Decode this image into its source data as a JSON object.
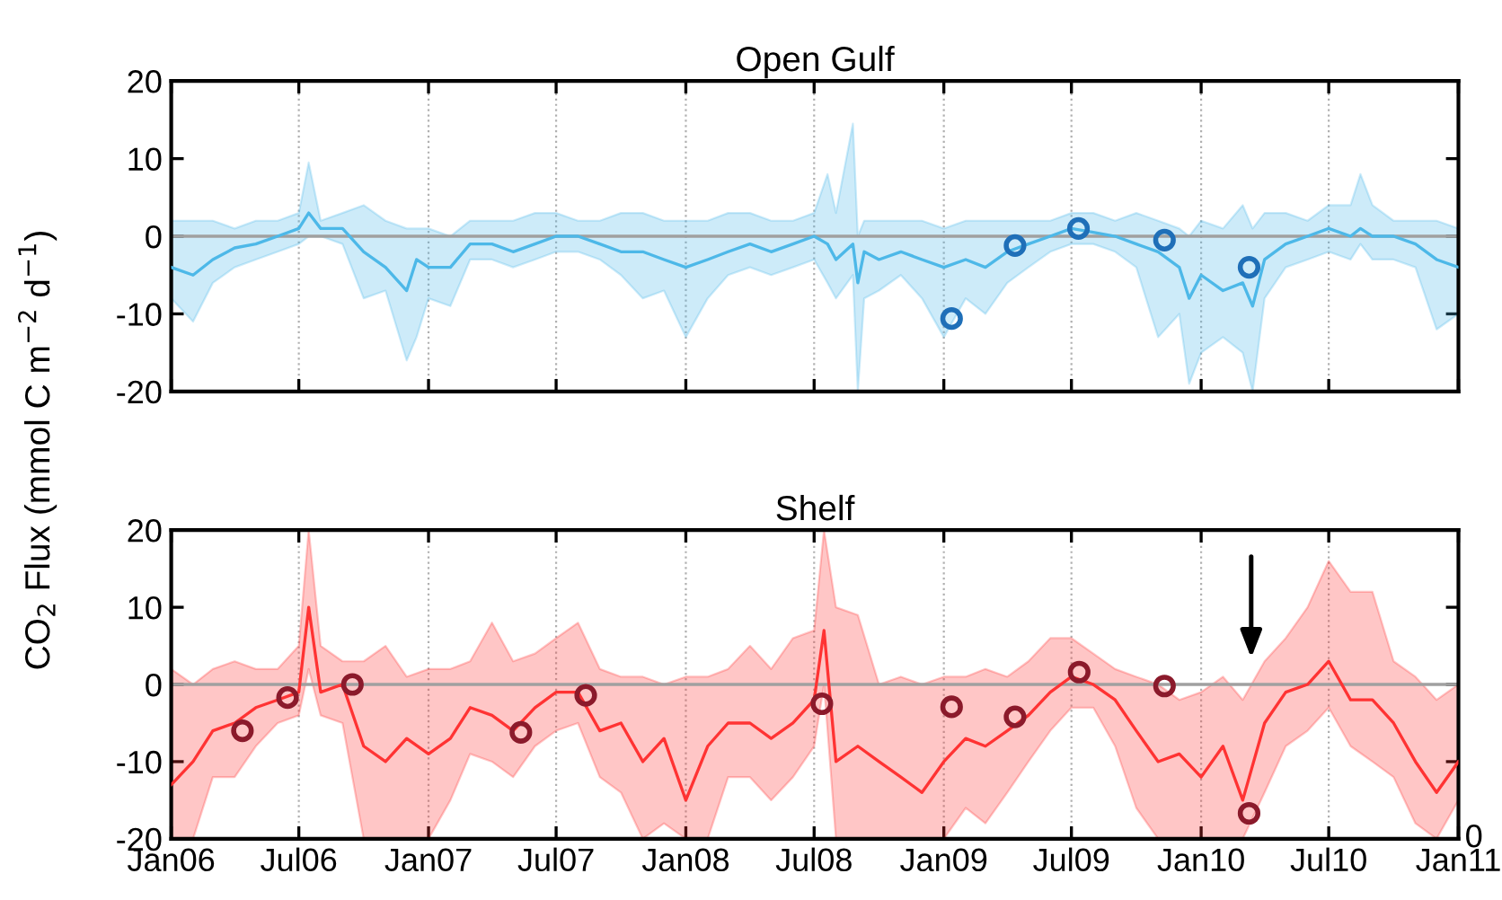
{
  "chart_data": [
    {
      "type": "line",
      "title": "Open Gulf",
      "ylabel": "CO$_{2}$ Flux (mmol C m$^{−2}$ d$^{−1}$)",
      "xlim": [
        "2006-01-01",
        "2011-01-01"
      ],
      "ylim": [
        -20,
        20
      ],
      "yticks": [
        -20,
        -10,
        0,
        10,
        20
      ],
      "xticks": [
        {
          "value": "2006-01-01",
          "label": null
        },
        {
          "value": "2006-07-01",
          "label": null
        },
        {
          "value": "2007-01-01",
          "label": null
        },
        {
          "value": "2007-07-01",
          "label": null
        },
        {
          "value": "2008-01-01",
          "label": null
        },
        {
          "value": "2008-07-01",
          "label": null
        },
        {
          "value": "2009-01-01",
          "label": null
        },
        {
          "value": "2009-07-01",
          "label": null
        },
        {
          "value": "2010-01-01",
          "label": null
        },
        {
          "value": "2010-07-01",
          "label": null
        },
        {
          "value": "2011-01-01",
          "label": null
        }
      ],
      "tick_labels": "y",
      "grid": "x",
      "legend": false,
      "ref_lines": [
        {
          "axis": "y",
          "value": 0,
          "color": "#a0a0a0",
          "line_style": "solid"
        }
      ],
      "series": [
        {
          "color": "#4db8e8",
          "x": [
            "2006-01-01",
            "2006-02-01",
            "2006-03-01",
            "2006-04-01",
            "2006-05-01",
            "2006-06-01",
            "2006-07-01",
            "2006-07-15",
            "2006-08-01",
            "2006-09-01",
            "2006-10-01",
            "2006-11-01",
            "2006-12-01",
            "2006-12-15",
            "2007-01-01",
            "2007-02-01",
            "2007-03-01",
            "2007-04-01",
            "2007-05-01",
            "2007-06-01",
            "2007-07-01",
            "2007-08-01",
            "2007-09-01",
            "2007-10-01",
            "2007-11-01",
            "2007-12-01",
            "2008-01-01",
            "2008-02-01",
            "2008-03-01",
            "2008-04-01",
            "2008-05-01",
            "2008-06-01",
            "2008-07-01",
            "2008-07-20",
            "2008-08-01",
            "2008-08-25",
            "2008-09-01",
            "2008-09-10",
            "2008-10-01",
            "2008-11-01",
            "2008-12-01",
            "2009-01-01",
            "2009-02-01",
            "2009-03-01",
            "2009-04-01",
            "2009-05-01",
            "2009-06-01",
            "2009-07-01",
            "2009-08-01",
            "2009-09-01",
            "2009-10-01",
            "2009-11-01",
            "2009-12-01",
            "2009-12-15",
            "2010-01-01",
            "2010-02-01",
            "2010-03-01",
            "2010-03-15",
            "2010-04-01",
            "2010-05-01",
            "2010-06-01",
            "2010-07-01",
            "2010-08-01",
            "2010-08-15",
            "2010-09-01",
            "2010-10-01",
            "2010-11-01",
            "2010-12-01",
            "2011-01-01"
          ],
          "values": [
            -4,
            -5,
            -3,
            -1.5,
            -1,
            0,
            1,
            3,
            1,
            1,
            -2,
            -4,
            -7,
            -3,
            -4,
            -4,
            -1,
            -1,
            -2,
            -1,
            0,
            0,
            -1,
            -2,
            -2,
            -3,
            -4,
            -3,
            -2,
            -1,
            -2,
            -1,
            0,
            -1,
            -3,
            -1,
            -6,
            -2,
            -3,
            -2,
            -3,
            -4,
            -3,
            -4,
            -2,
            -1,
            0,
            1,
            0.5,
            0,
            -1,
            -2,
            -4,
            -8,
            -5,
            -7,
            -6,
            -9,
            -3,
            -1,
            0,
            1,
            0,
            1,
            0,
            0,
            -1,
            -3,
            -4
          ],
          "upper": [
            2,
            2,
            2,
            1,
            2,
            2,
            3,
            9.5,
            2,
            3,
            4,
            2,
            1,
            1,
            1,
            0,
            2,
            2,
            2,
            3,
            3,
            2,
            2,
            3,
            3,
            2,
            2,
            2,
            3,
            3,
            2,
            2,
            3,
            8,
            3,
            14.5,
            0,
            2,
            2,
            2,
            2,
            1,
            2,
            2,
            2,
            2,
            2,
            3,
            3,
            2,
            3,
            2,
            1,
            0,
            2,
            1,
            4,
            1,
            3,
            3,
            2,
            4,
            4,
            8,
            4,
            2,
            2,
            2,
            1
          ],
          "lower": [
            -8,
            -11,
            -6,
            -4,
            -3,
            -2,
            -1,
            0,
            0,
            -1,
            -8,
            -7,
            -16,
            -13,
            -8,
            -9,
            -3,
            -3,
            -4,
            -3,
            -2,
            -2,
            -3,
            -5,
            -8,
            -7,
            -13,
            -8,
            -5,
            -4,
            -5,
            -4,
            -3,
            -6,
            -8,
            -5,
            -20,
            -8,
            -7,
            -5,
            -8,
            -13,
            -8,
            -10,
            -6,
            -4,
            -2,
            -1,
            -1,
            -2,
            -4,
            -13,
            -10,
            -19,
            -15,
            -13,
            -15,
            -20,
            -8,
            -4,
            -3,
            -2,
            -3,
            -1,
            -3,
            -3,
            -4,
            -12,
            -10
          ]
        },
        {
          "type": "scatter",
          "color": "#1f6fb8",
          "marker": "circle",
          "x": [
            "2009-01-12",
            "2009-04-12",
            "2009-07-11",
            "2009-11-10",
            "2010-03-10"
          ],
          "values": [
            -10.6,
            -1.2,
            1.0,
            -0.5,
            -4
          ]
        }
      ]
    },
    {
      "type": "line",
      "title": "Shelf",
      "xlim": [
        "2006-01-01",
        "2011-01-01"
      ],
      "ylim": [
        -20,
        20
      ],
      "yticks": [
        {
          "value": -20,
          "label": "-20"
        },
        -10,
        0,
        10,
        20
      ],
      "xticks": [
        {
          "value": "2006-01-01",
          "label": "Jan06"
        },
        {
          "value": "2006-07-01",
          "label": "Jul06"
        },
        {
          "value": "2007-01-01",
          "label": "Jan07"
        },
        {
          "value": "2007-07-01",
          "label": "Jul07"
        },
        {
          "value": "2008-01-01",
          "label": "Jan08"
        },
        {
          "value": "2008-07-01",
          "label": "Jul08"
        },
        {
          "value": "2009-01-01",
          "label": "Jan09"
        },
        {
          "value": "2009-07-01",
          "label": "Jul09"
        },
        {
          "value": "2010-01-01",
          "label": "Jan10"
        },
        {
          "value": "2010-07-01",
          "label": "Jul10"
        },
        {
          "value": "2011-01-01",
          "label": "Jan11"
        }
      ],
      "grid": "x",
      "legend": false,
      "ref_lines": [
        {
          "axis": "y",
          "value": 0,
          "color": "#a0a0a0",
          "line_style": "solid"
        }
      ],
      "annotations": [
        "0"
      ],
      "series": [
        {
          "color": "#ff3333",
          "x": [
            "2006-01-01",
            "2006-02-01",
            "2006-03-01",
            "2006-04-01",
            "2006-05-01",
            "2006-06-01",
            "2006-07-01",
            "2006-07-15",
            "2006-08-01",
            "2006-09-01",
            "2006-10-01",
            "2006-11-01",
            "2006-12-01",
            "2007-01-01",
            "2007-02-01",
            "2007-03-01",
            "2007-04-01",
            "2007-05-01",
            "2007-06-01",
            "2007-07-01",
            "2007-08-01",
            "2007-09-01",
            "2007-10-01",
            "2007-11-01",
            "2007-12-01",
            "2008-01-01",
            "2008-02-01",
            "2008-03-01",
            "2008-04-01",
            "2008-05-01",
            "2008-06-01",
            "2008-07-01",
            "2008-07-15",
            "2008-08-01",
            "2008-09-01",
            "2008-10-01",
            "2008-11-01",
            "2008-12-01",
            "2009-01-01",
            "2009-02-01",
            "2009-03-01",
            "2009-04-01",
            "2009-05-01",
            "2009-06-01",
            "2009-07-01",
            "2009-08-01",
            "2009-09-01",
            "2009-10-01",
            "2009-11-01",
            "2009-12-01",
            "2010-01-01",
            "2010-02-01",
            "2010-03-01",
            "2010-04-01",
            "2010-05-01",
            "2010-06-01",
            "2010-07-01",
            "2010-08-01",
            "2010-09-01",
            "2010-10-01",
            "2010-11-01",
            "2010-12-01",
            "2011-01-01"
          ],
          "values": [
            -13,
            -10,
            -6,
            -5,
            -3,
            -2,
            -1,
            10,
            -1,
            0,
            -8,
            -10,
            -7,
            -9,
            -7,
            -3,
            -4,
            -6,
            -3,
            -1,
            -1,
            -6,
            -5,
            -10,
            -7,
            -15,
            -8,
            -5,
            -5,
            -7,
            -5,
            -2,
            7,
            -10,
            -8,
            -10,
            -12,
            -14,
            -10,
            -7,
            -8,
            -6,
            -4,
            -1,
            1,
            0,
            -2,
            -6,
            -10,
            -9,
            -12,
            -8,
            -15,
            -5,
            -1,
            0,
            3,
            -2,
            -2,
            -5,
            -10,
            -14,
            -10
          ],
          "upper": [
            2,
            0,
            2,
            3,
            2,
            2,
            5,
            20,
            5,
            3,
            3,
            5,
            1,
            2,
            2,
            3,
            8,
            3,
            4,
            6,
            8,
            2,
            1,
            1,
            0,
            1,
            1,
            2,
            5,
            2,
            6,
            7,
            20,
            10,
            9,
            0,
            1,
            0,
            1,
            1,
            2,
            1,
            3,
            6,
            6,
            4,
            2,
            1,
            0,
            -2,
            -1,
            1,
            -2,
            3,
            6,
            10,
            16,
            12,
            12,
            3,
            1,
            -2,
            0
          ],
          "lower": [
            -20,
            -20,
            -12,
            -12,
            -8,
            -5,
            -4,
            2,
            -4,
            -5,
            -20,
            -20,
            -20,
            -20,
            -15,
            -9,
            -10,
            -12,
            -8,
            -6,
            -5,
            -12,
            -14,
            -20,
            -18,
            -20,
            -20,
            -12,
            -12,
            -15,
            -12,
            -8,
            0,
            -20,
            -20,
            -20,
            -20,
            -20,
            -20,
            -16,
            -18,
            -14,
            -10,
            -6,
            -3,
            -3,
            -8,
            -16,
            -20,
            -20,
            -20,
            -20,
            -20,
            -14,
            -8,
            -6,
            -3,
            -8,
            -10,
            -12,
            -18,
            -20,
            -15
          ]
        },
        {
          "type": "scatter",
          "color": "#8b1a2b",
          "marker": "circle",
          "x": [
            "2006-04-12",
            "2006-06-15",
            "2006-09-15",
            "2007-05-12",
            "2007-08-12",
            "2008-07-12",
            "2009-01-12",
            "2009-04-12",
            "2009-07-12",
            "2009-11-10",
            "2010-03-10"
          ],
          "values": [
            -6,
            -1.7,
            0,
            -6.2,
            -1.4,
            -2.5,
            -2.9,
            -4.2,
            1.6,
            -0.2,
            -16.7
          ]
        }
      ]
    }
  ]
}
